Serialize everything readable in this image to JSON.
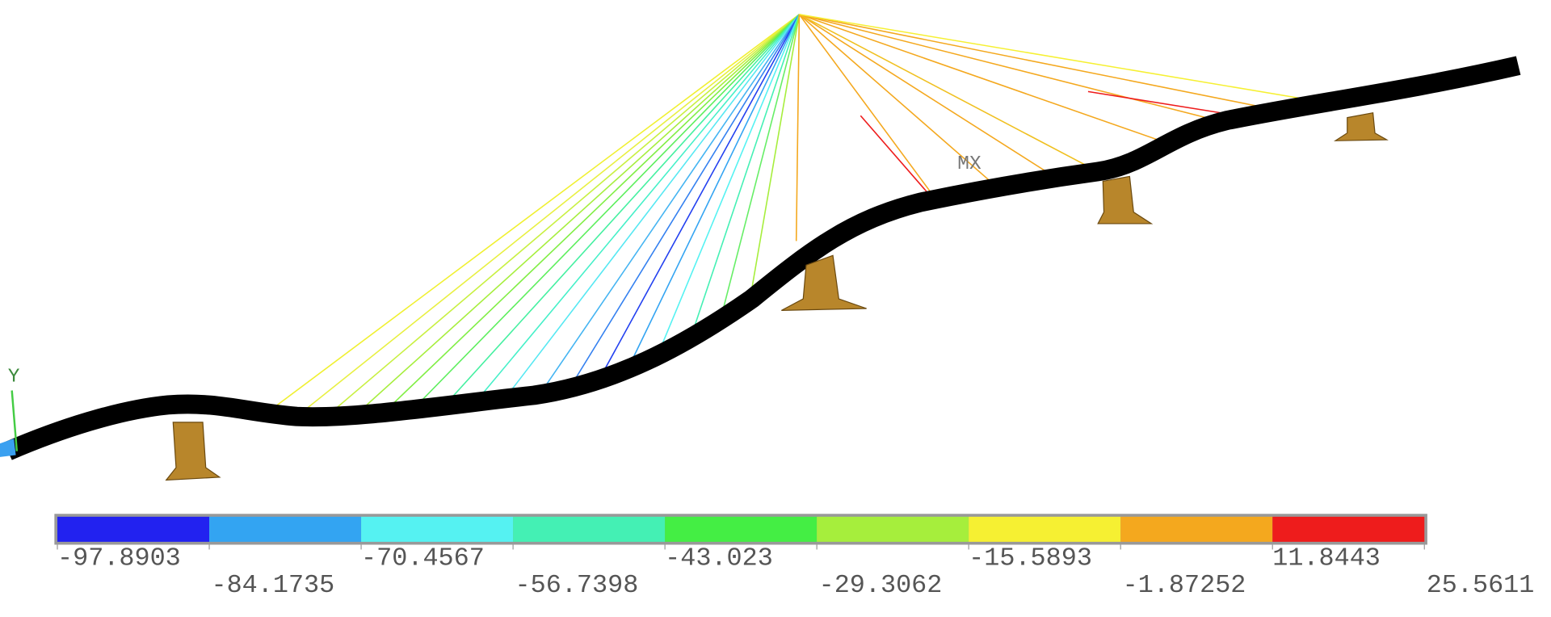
{
  "axis_label": "Y",
  "max_label": "MX",
  "legend": {
    "colors": [
      "#2222f0",
      "#33a4f2",
      "#55f2f2",
      "#44f0b4",
      "#44ee44",
      "#a6ee3c",
      "#f6f032",
      "#f4a81e",
      "#ee1c1c"
    ],
    "labels": [
      "-97.8903",
      "-84.1735",
      "-70.4567",
      "-56.7398",
      "-43.023",
      "-29.3062",
      "-15.5893",
      "-1.87252",
      "11.8443",
      "25.5611"
    ]
  }
}
